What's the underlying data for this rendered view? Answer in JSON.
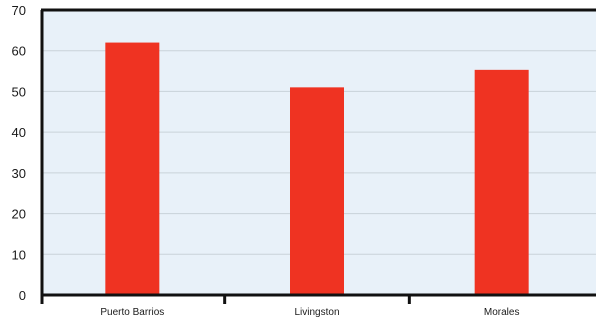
{
  "chart_data": {
    "type": "bar",
    "categories": [
      "Puerto Barrios",
      "Livingston",
      "Morales"
    ],
    "values": [
      62,
      51,
      55.3
    ],
    "ylim": [
      0,
      70
    ],
    "yticks": [
      0,
      10,
      20,
      30,
      40,
      50,
      60,
      70
    ],
    "grid": true,
    "legend": "none",
    "title": "",
    "xlabel": "",
    "ylabel": ""
  },
  "colors": {
    "bar": "#ef3322",
    "plot_background": "#e8f1f9",
    "gridline": "#c9d2d9",
    "axis": "#111111"
  }
}
